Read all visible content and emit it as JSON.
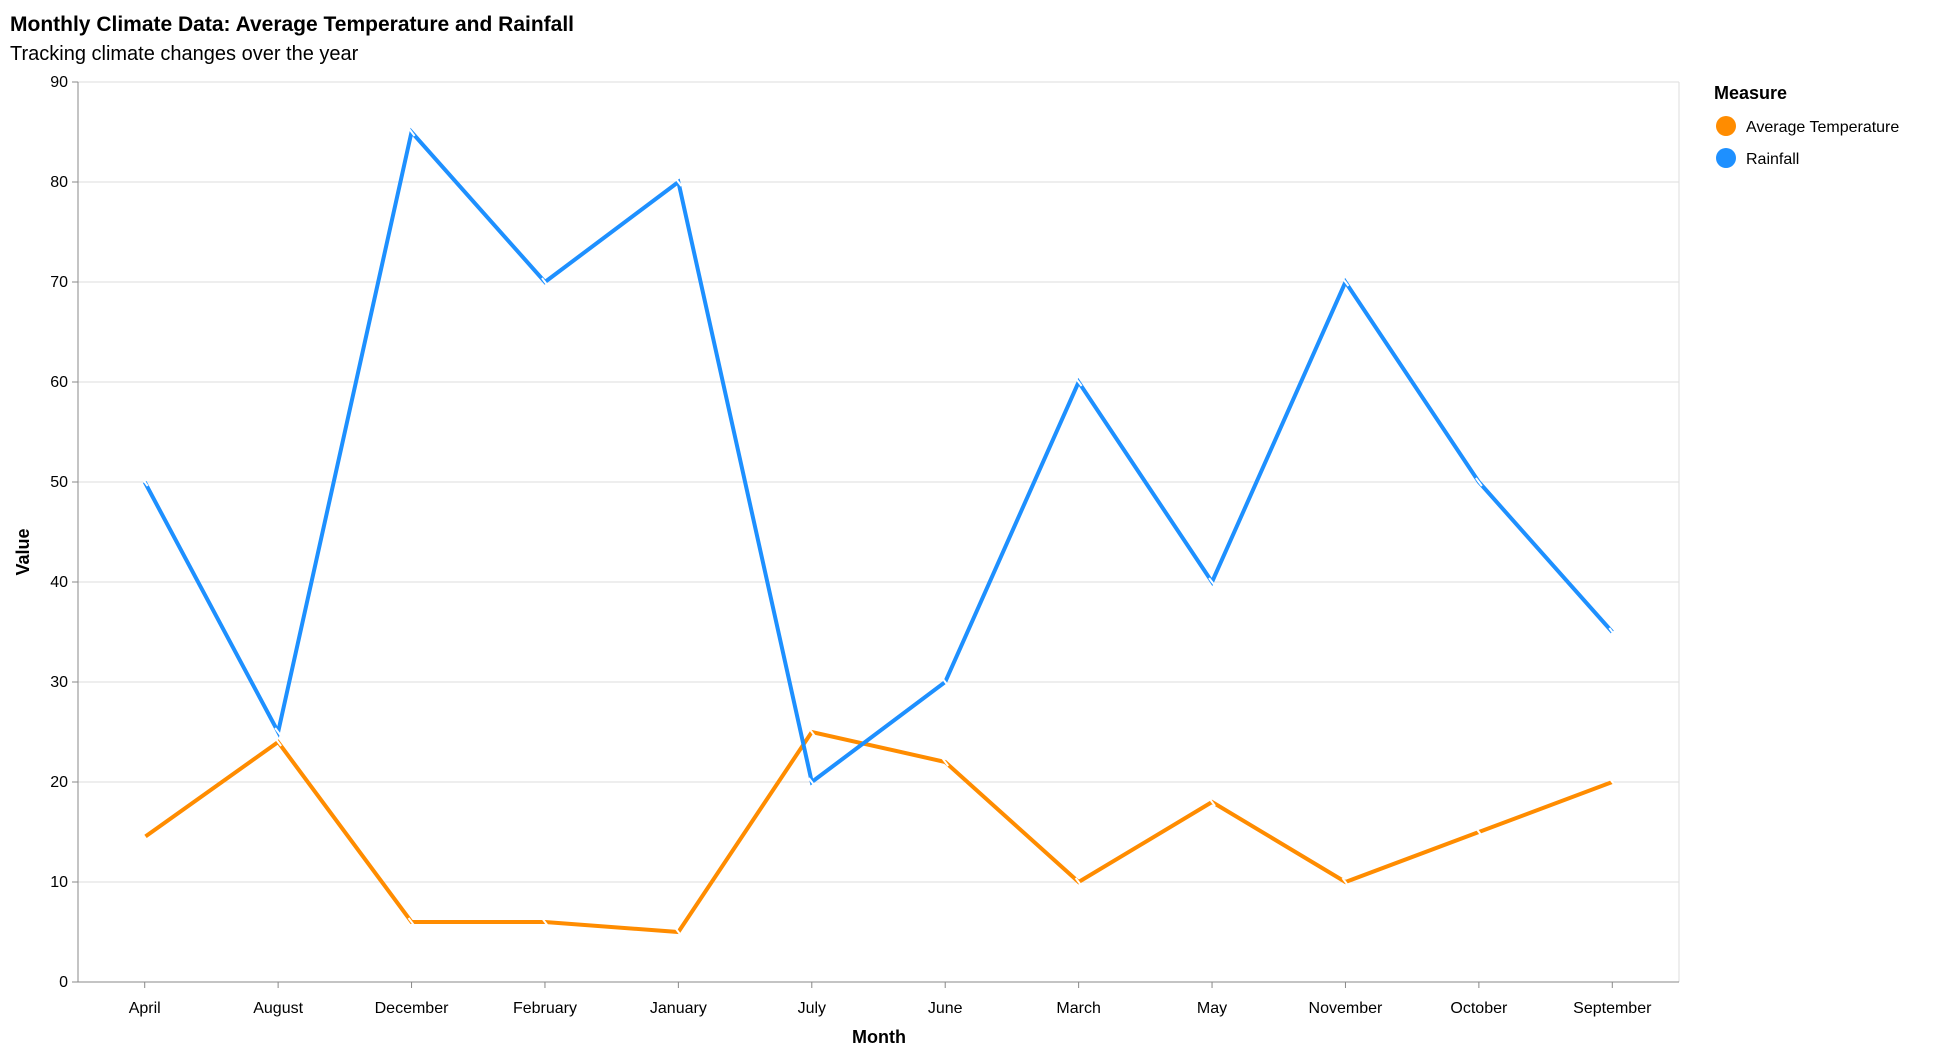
{
  "chart_data": {
    "type": "line",
    "title": "Monthly Climate Data: Average Temperature and Rainfall",
    "subtitle": "Tracking climate changes over the year",
    "xlabel": "Month",
    "ylabel": "Value",
    "ylim": [
      0,
      90
    ],
    "y_ticks": [
      0,
      10,
      20,
      30,
      40,
      50,
      60,
      70,
      80,
      90
    ],
    "grid": true,
    "categories": [
      "April",
      "August",
      "December",
      "February",
      "January",
      "July",
      "June",
      "March",
      "May",
      "November",
      "October",
      "September"
    ],
    "series": [
      {
        "name": "Average Temperature",
        "color": "#ff8c00",
        "values": [
          14.5,
          24,
          6,
          6,
          5,
          25,
          22,
          10,
          18,
          10,
          15,
          20
        ]
      },
      {
        "name": "Rainfall",
        "color": "#1e90ff",
        "values": [
          50,
          25,
          85,
          70,
          80,
          20,
          30,
          60,
          40,
          70,
          50,
          35
        ]
      }
    ],
    "legend": {
      "title": "Measure",
      "position": "top-right"
    }
  }
}
